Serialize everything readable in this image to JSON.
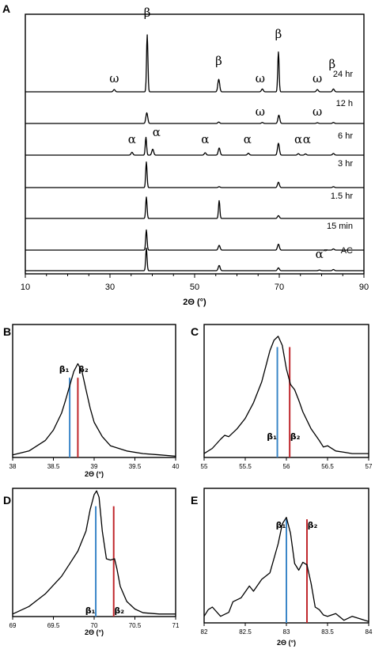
{
  "chart_data": [
    {
      "panel": "A",
      "type": "line",
      "xlabel": "2Θ (°)",
      "xlim": [
        10,
        90
      ],
      "xticks": [
        10,
        30,
        50,
        70,
        90
      ],
      "series": [
        {
          "name": "24 hr",
          "peaks": [
            [
              31,
              0.04
            ],
            [
              38.8,
              1.0
            ],
            [
              55.7,
              0.22
            ],
            [
              66,
              0.05
            ],
            [
              69.8,
              0.7
            ],
            [
              79,
              0.04
            ],
            [
              82.8,
              0.05
            ]
          ]
        },
        {
          "name": "12 h",
          "peaks": [
            [
              38.7,
              0.45
            ],
            [
              55.7,
              0.06
            ],
            [
              66,
              0.04
            ],
            [
              69.9,
              0.35
            ],
            [
              79,
              0.03
            ],
            [
              82.8,
              0.04
            ]
          ]
        },
        {
          "name": "6 hr",
          "peaks": [
            [
              35.2,
              0.12
            ],
            [
              38.5,
              0.75
            ],
            [
              40.1,
              0.25
            ],
            [
              52.5,
              0.1
            ],
            [
              55.8,
              0.3
            ],
            [
              62.7,
              0.08
            ],
            [
              69.8,
              0.5
            ],
            [
              74.5,
              0.06
            ],
            [
              76.2,
              0.05
            ],
            [
              82.8,
              0.07
            ]
          ]
        },
        {
          "name": "3 hr",
          "peaks": [
            [
              38.6,
              0.85
            ],
            [
              55.8,
              0.03
            ],
            [
              69.8,
              0.18
            ],
            [
              82.8,
              0.03
            ]
          ]
        },
        {
          "name": "1.5 hr",
          "peaks": [
            [
              38.6,
              0.9
            ],
            [
              55.8,
              0.75
            ],
            [
              69.8,
              0.12
            ]
          ]
        },
        {
          "name": "15 min",
          "peaks": [
            [
              38.6,
              0.85
            ],
            [
              55.8,
              0.2
            ],
            [
              69.8,
              0.25
            ],
            [
              82.8,
              0.05
            ]
          ]
        },
        {
          "name": "AC",
          "peaks": [
            [
              38.6,
              0.95
            ],
            [
              55.8,
              0.22
            ],
            [
              69.8,
              0.12
            ],
            [
              79.5,
              0.03
            ],
            [
              82.8,
              0.05
            ]
          ]
        }
      ],
      "peak_annotations": [
        {
          "symbol": "β",
          "x": 38.8,
          "trace": "24 hr"
        },
        {
          "symbol": "β",
          "x": 55.7,
          "trace": "24 hr"
        },
        {
          "symbol": "β",
          "x": 69.8,
          "trace": "24 hr"
        },
        {
          "symbol": "β",
          "x": 82.5,
          "trace": "24 hr"
        },
        {
          "symbol": "ω",
          "x": 31.0,
          "trace": "24 hr"
        },
        {
          "symbol": "ω",
          "x": 65.5,
          "trace": "24 hr"
        },
        {
          "symbol": "ω",
          "x": 79.0,
          "trace": "24 hr"
        },
        {
          "symbol": "ω",
          "x": 65.5,
          "trace": "12 h"
        },
        {
          "symbol": "ω",
          "x": 79.0,
          "trace": "12 h"
        },
        {
          "symbol": "α",
          "x": 35.2,
          "trace": "6 hr"
        },
        {
          "symbol": "α",
          "x": 41.0,
          "trace": "6 hr"
        },
        {
          "symbol": "α",
          "x": 52.5,
          "trace": "6 hr"
        },
        {
          "symbol": "α",
          "x": 62.5,
          "trace": "6 hr"
        },
        {
          "symbol": "α",
          "x": 74.5,
          "trace": "6 hr"
        },
        {
          "symbol": "α",
          "x": 76.5,
          "trace": "6 hr"
        },
        {
          "symbol": "α″",
          "x": 80.0,
          "trace": "AC"
        }
      ]
    },
    {
      "panel": "B",
      "type": "line",
      "xlabel": "2Θ (°)",
      "xlim": [
        38,
        40
      ],
      "xticks": [
        "38",
        "38.5",
        "39",
        "39.5",
        "40"
      ],
      "x": [
        38.0,
        38.2,
        38.4,
        38.5,
        38.6,
        38.65,
        38.7,
        38.75,
        38.8,
        38.85,
        38.9,
        38.95,
        39.0,
        39.1,
        39.2,
        39.4,
        39.6,
        39.8,
        40.0
      ],
      "y": [
        0.02,
        0.05,
        0.13,
        0.21,
        0.34,
        0.44,
        0.55,
        0.66,
        0.72,
        0.66,
        0.52,
        0.38,
        0.27,
        0.16,
        0.09,
        0.05,
        0.03,
        0.02,
        0.01
      ],
      "reference_lines": [
        {
          "label": "β₁",
          "x": 38.7,
          "color": "#3b86c8"
        },
        {
          "label": "β₂",
          "x": 38.8,
          "color": "#c0282d"
        }
      ]
    },
    {
      "panel": "C",
      "type": "line",
      "xlabel": "",
      "xlim": [
        55,
        57
      ],
      "xticks": [
        "55",
        "55.5",
        "56",
        "56.5",
        "57"
      ],
      "x": [
        55.0,
        55.1,
        55.2,
        55.25,
        55.3,
        55.4,
        55.5,
        55.6,
        55.7,
        55.75,
        55.8,
        55.85,
        55.9,
        55.95,
        56.0,
        56.05,
        56.1,
        56.15,
        56.2,
        56.3,
        56.4,
        56.45,
        56.5,
        56.6,
        56.7,
        56.8,
        56.9,
        57.0
      ],
      "y": [
        0.03,
        0.07,
        0.14,
        0.17,
        0.16,
        0.22,
        0.3,
        0.42,
        0.58,
        0.7,
        0.82,
        0.9,
        0.93,
        0.86,
        0.68,
        0.56,
        0.52,
        0.44,
        0.35,
        0.22,
        0.13,
        0.08,
        0.09,
        0.05,
        0.04,
        0.03,
        0.03,
        0.03
      ],
      "reference_lines": [
        {
          "label": "β₁",
          "x": 55.89,
          "color": "#3b86c8"
        },
        {
          "label": "β₂",
          "x": 56.04,
          "color": "#c0282d"
        }
      ]
    },
    {
      "panel": "D",
      "type": "line",
      "xlabel": "2Θ (°)",
      "xlim": [
        69,
        71
      ],
      "xticks": [
        "69",
        "69.5",
        "70",
        "70.5",
        "71"
      ],
      "x": [
        69.0,
        69.2,
        69.4,
        69.6,
        69.7,
        69.8,
        69.9,
        69.95,
        70.0,
        70.03,
        70.06,
        70.1,
        70.15,
        70.2,
        70.25,
        70.28,
        70.32,
        70.4,
        70.5,
        70.6,
        70.8,
        71.0
      ],
      "y": [
        0.02,
        0.08,
        0.18,
        0.32,
        0.42,
        0.52,
        0.68,
        0.85,
        0.97,
        1.0,
        0.95,
        0.68,
        0.46,
        0.45,
        0.46,
        0.38,
        0.24,
        0.12,
        0.06,
        0.03,
        0.02,
        0.02
      ],
      "reference_lines": [
        {
          "label": "β₁",
          "x": 70.02,
          "color": "#3b86c8"
        },
        {
          "label": "β₂",
          "x": 70.24,
          "color": "#c0282d"
        }
      ]
    },
    {
      "panel": "E",
      "type": "line",
      "xlabel": "2Θ (°)",
      "xlim": [
        82,
        84
      ],
      "xticks": [
        "82",
        "82.5",
        "83",
        "83.5",
        "84"
      ],
      "x": [
        82.0,
        82.05,
        82.1,
        82.2,
        82.3,
        82.35,
        82.45,
        82.55,
        82.6,
        82.7,
        82.8,
        82.9,
        82.95,
        83.0,
        83.05,
        83.1,
        83.15,
        83.2,
        83.25,
        83.3,
        83.35,
        83.4,
        83.45,
        83.5,
        83.6,
        83.7,
        83.8,
        83.9,
        84.0
      ],
      "y": [
        0.05,
        0.1,
        0.12,
        0.05,
        0.08,
        0.16,
        0.19,
        0.28,
        0.24,
        0.33,
        0.38,
        0.6,
        0.75,
        0.8,
        0.68,
        0.45,
        0.4,
        0.46,
        0.44,
        0.3,
        0.12,
        0.1,
        0.06,
        0.05,
        0.07,
        0.02,
        0.05,
        0.03,
        0.01
      ],
      "reference_lines": [
        {
          "label": "β₁",
          "x": 83.0,
          "color": "#3b86c8"
        },
        {
          "label": "β₂",
          "x": 83.25,
          "color": "#c0282d"
        }
      ]
    }
  ]
}
